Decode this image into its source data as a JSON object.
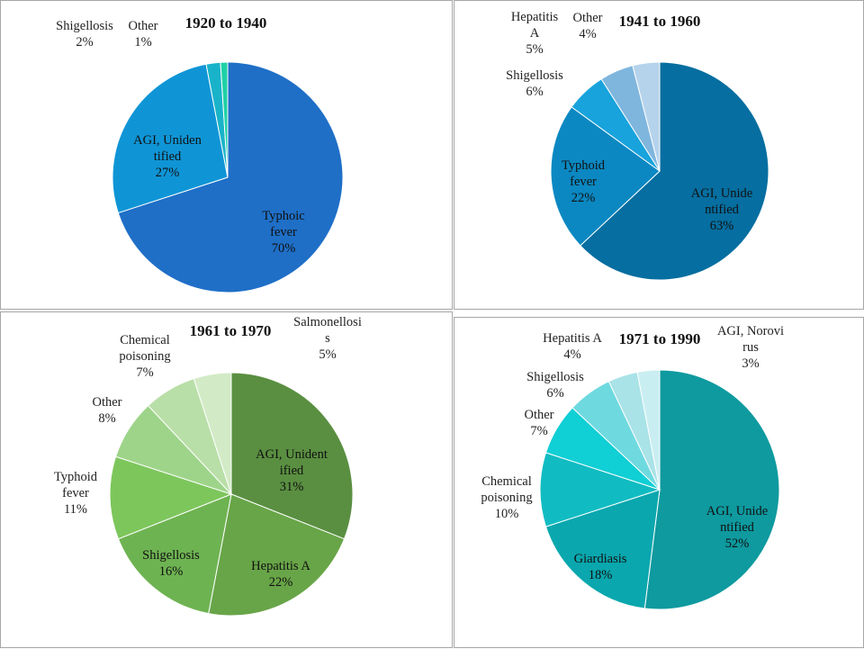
{
  "chart_data": [
    {
      "type": "pie",
      "title": "1920 to 1940",
      "palette": [
        "#1f6fc7",
        "#0f95d6",
        "#19b3c9",
        "#1fd1a6"
      ],
      "slices": [
        {
          "label": "Typhoic fever",
          "label_lines": [
            "Typhoic",
            "fever"
          ],
          "value": 70,
          "pct_text": "70%"
        },
        {
          "label": "AGI, Unidentified",
          "label_lines": [
            "AGI, Uniden",
            "tified"
          ],
          "value": 27,
          "pct_text": "27%"
        },
        {
          "label": "Shigellosis",
          "label_lines": [
            "Shigellosis"
          ],
          "value": 2,
          "pct_text": "2%"
        },
        {
          "label": "Other",
          "label_lines": [
            "Other"
          ],
          "value": 1,
          "pct_text": "1%"
        }
      ]
    },
    {
      "type": "pie",
      "title": "1941 to 1960",
      "palette": [
        "#066ea0",
        "#0b88c2",
        "#18a3dc",
        "#7fb6de",
        "#b6d3ec"
      ],
      "slices": [
        {
          "label": "AGI, Unidentified",
          "label_lines": [
            "AGI, Unide",
            "ntified"
          ],
          "value": 63,
          "pct_text": "63%"
        },
        {
          "label": "Typhoid fever",
          "label_lines": [
            "Typhoid",
            "fever"
          ],
          "value": 22,
          "pct_text": "22%"
        },
        {
          "label": "Shigellosis",
          "label_lines": [
            "Shigellosis"
          ],
          "value": 6,
          "pct_text": "6%"
        },
        {
          "label": "Hepatitis A",
          "label_lines": [
            "Hepatitis",
            "A"
          ],
          "value": 5,
          "pct_text": "5%"
        },
        {
          "label": "Other",
          "label_lines": [
            "Other"
          ],
          "value": 4,
          "pct_text": "4%"
        }
      ]
    },
    {
      "type": "pie",
      "title": "1961 to 1970",
      "palette": [
        "#5a8f41",
        "#68a548",
        "#6eb352",
        "#7dc65c",
        "#9ed48a",
        "#b9dfa8",
        "#d2ebc6"
      ],
      "slices": [
        {
          "label": "AGI, Unidentified",
          "label_lines": [
            "AGI, Unident",
            "ified"
          ],
          "value": 31,
          "pct_text": "31%"
        },
        {
          "label": "Hepatitis A",
          "label_lines": [
            "Hepatitis A"
          ],
          "value": 22,
          "pct_text": "22%"
        },
        {
          "label": "Shigellosis",
          "label_lines": [
            "Shigellosis"
          ],
          "value": 16,
          "pct_text": "16%"
        },
        {
          "label": "Typhoid fever",
          "label_lines": [
            "Typhoid",
            "fever"
          ],
          "value": 11,
          "pct_text": "11%"
        },
        {
          "label": "Other",
          "label_lines": [
            "Other"
          ],
          "value": 8,
          "pct_text": "8%"
        },
        {
          "label": "Chemical poisoning",
          "label_lines": [
            "Chemical",
            "poisoning"
          ],
          "value": 7,
          "pct_text": "7%"
        },
        {
          "label": "Salmonellosis",
          "label_lines": [
            "Salmonellosi",
            "s"
          ],
          "value": 5,
          "pct_text": "5%"
        }
      ]
    },
    {
      "type": "pie",
      "title": "1971 to 1990",
      "palette": [
        "#0e9a9f",
        "#0aa7ae",
        "#10bcc2",
        "#10cfd5",
        "#6fd9e0",
        "#a9e3e8",
        "#c9eef1"
      ],
      "slices": [
        {
          "label": "AGI, Unidentified",
          "label_lines": [
            "AGI, Unide",
            "ntified"
          ],
          "value": 52,
          "pct_text": "52%"
        },
        {
          "label": "Giardiasis",
          "label_lines": [
            "Giardiasis"
          ],
          "value": 18,
          "pct_text": "18%"
        },
        {
          "label": "Chemical poisoning",
          "label_lines": [
            "Chemical",
            "poisoning"
          ],
          "value": 10,
          "pct_text": "10%"
        },
        {
          "label": "Other",
          "label_lines": [
            "Other"
          ],
          "value": 7,
          "pct_text": "7%"
        },
        {
          "label": "Shigellosis",
          "label_lines": [
            "Shigellosis"
          ],
          "value": 6,
          "pct_text": "6%"
        },
        {
          "label": "Hepatitis A",
          "label_lines": [
            "Hepatitis A"
          ],
          "value": 4,
          "pct_text": "4%"
        },
        {
          "label": "AGI, Norovirus",
          "label_lines": [
            "AGI, Norovi",
            "rus"
          ],
          "value": 3,
          "pct_text": "3%"
        }
      ]
    }
  ]
}
